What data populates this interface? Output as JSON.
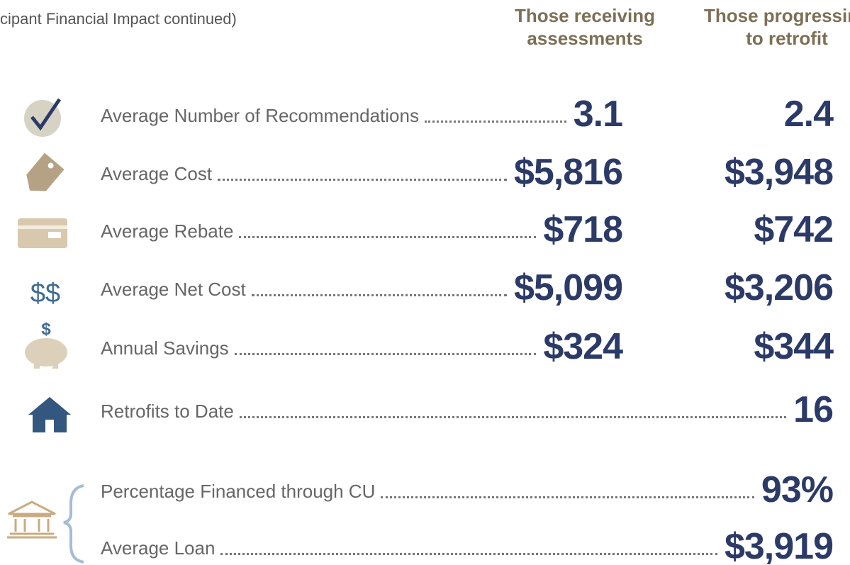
{
  "header": {
    "title": "cipant Financial Impact continued)",
    "columns": [
      "Those receiving assessments",
      "Those progressing to retrofit"
    ]
  },
  "icons": {
    "net_cost": "$$",
    "savings": "$"
  },
  "rows": [
    {
      "label": "Average Number of Recommendations",
      "values": [
        "3.1",
        "2.4"
      ]
    },
    {
      "label": "Average Cost",
      "values": [
        "$5,816",
        "$3,948"
      ]
    },
    {
      "label": "Average Rebate",
      "values": [
        "$718",
        "$742"
      ]
    },
    {
      "label": "Average Net Cost",
      "values": [
        "$5,099",
        "$3,206"
      ]
    },
    {
      "label": "Annual Savings",
      "values": [
        "$324",
        "$344"
      ]
    },
    {
      "label": "Retrofits to Date",
      "values": [
        null,
        "16"
      ]
    },
    {
      "label": "Percentage Financed through CU",
      "values": [
        null,
        "93%"
      ]
    },
    {
      "label": "Average Loan",
      "values": [
        null,
        "$3,919"
      ]
    }
  ]
}
